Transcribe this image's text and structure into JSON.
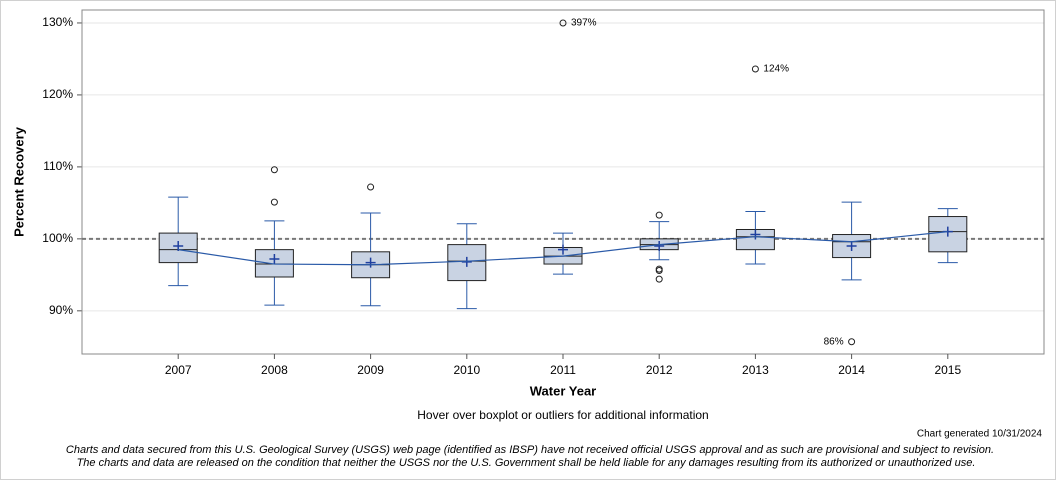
{
  "chart_data": {
    "type": "boxplot",
    "xlabel": "Water Year",
    "ylabel": "Percent Recovery",
    "categories": [
      "2007",
      "2008",
      "2009",
      "2010",
      "2011",
      "2012",
      "2013",
      "2014",
      "2015"
    ],
    "whisker_low": [
      93.5,
      90.8,
      90.7,
      90.3,
      95.1,
      97.1,
      96.5,
      94.3,
      96.7
    ],
    "q1": [
      96.7,
      94.7,
      94.6,
      94.2,
      96.5,
      98.5,
      98.5,
      97.4,
      98.2
    ],
    "median": [
      98.5,
      96.5,
      96.4,
      96.9,
      97.6,
      99.2,
      100.3,
      99.6,
      101.0
    ],
    "q3": [
      100.8,
      98.5,
      98.2,
      99.2,
      98.8,
      100.0,
      101.3,
      100.6,
      103.1
    ],
    "whisker_high": [
      105.8,
      102.5,
      103.6,
      102.1,
      100.8,
      102.4,
      103.8,
      105.1,
      104.2
    ],
    "mean": [
      99.0,
      97.2,
      96.7,
      96.8,
      98.5,
      99.0,
      100.6,
      99.0,
      101.0
    ],
    "outliers": [
      [],
      [
        109.6,
        105.1
      ],
      [
        107.2
      ],
      [],
      [
        {
          "value": 397,
          "label": "397%"
        }
      ],
      [
        103.3,
        95.8,
        95.6,
        94.4
      ],
      [
        {
          "value": 123.6,
          "label": "124%"
        }
      ],
      [
        {
          "value": 85.7,
          "label": "86%"
        }
      ],
      []
    ],
    "box_color": "#c9d3e3",
    "whisker_color": "#2a5aa8",
    "mean_color": "#1f3f9f",
    "line_color": "#2a5aa8",
    "reference_line": 100,
    "ylim": [
      84,
      131.8
    ],
    "yticks": [
      {
        "value": 90,
        "label": "90%"
      },
      {
        "value": 100,
        "label": "100%"
      },
      {
        "value": 110,
        "label": "110%"
      },
      {
        "value": 120,
        "label": "120%"
      },
      {
        "value": 130,
        "label": "130%"
      }
    ],
    "grid": true,
    "note": "Hover over boxplot or outliers for additional information",
    "generated": "Chart generated 10/31/2024",
    "disclaimer": [
      "Charts and data secured from this U.S. Geological Survey (USGS) web page (identified as IBSP) have not received official USGS approval and as such are provisional and subject to revision.",
      "The charts and data are released on the condition that neither the USGS nor the U.S. Government shall be held liable for any damages resulting from its authorized or unauthorized use."
    ]
  }
}
